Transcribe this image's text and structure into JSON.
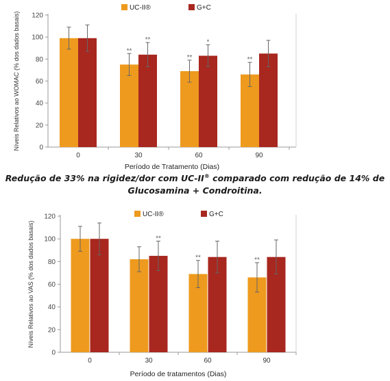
{
  "chart_data": [
    {
      "type": "bar",
      "title": "",
      "xlabel": "Período de Tratamento (Dias)",
      "ylabel": "Níveis Relativos ao WOMAC (% dos dados basais)",
      "categories": [
        "0",
        "30",
        "60",
        "90"
      ],
      "ylim": [
        0,
        120
      ],
      "yticks": [
        0,
        20,
        40,
        60,
        80,
        100,
        120
      ],
      "legend_position": "top",
      "series": [
        {
          "name": "UC-II®",
          "color": "#EE9A1E",
          "values": [
            99,
            75,
            69,
            66
          ],
          "errors": [
            10,
            10,
            10,
            11
          ],
          "annotations": [
            "",
            "**",
            "**",
            "**"
          ]
        },
        {
          "name": "G+C",
          "color": "#A8271F",
          "values": [
            99,
            84,
            83,
            85
          ],
          "errors": [
            12,
            11,
            10,
            12
          ],
          "annotations": [
            "",
            "**",
            "*",
            ""
          ]
        }
      ]
    },
    {
      "type": "bar",
      "title": "",
      "xlabel": "Período de tratamentos (Dias)",
      "ylabel": "Níveis Relativos ao VAS (% dos dados basais)",
      "categories": [
        "0",
        "30",
        "60",
        "90"
      ],
      "ylim": [
        0,
        120
      ],
      "yticks": [
        0,
        20,
        40,
        60,
        80,
        100,
        120
      ],
      "legend_position": "top",
      "series": [
        {
          "name": "UC-II®",
          "color": "#EE9A1E",
          "values": [
            100,
            82,
            69,
            66
          ],
          "errors": [
            11,
            11,
            12,
            13
          ],
          "annotations": [
            "",
            "",
            "**",
            "**"
          ]
        },
        {
          "name": "G+C",
          "color": "#A8271F",
          "values": [
            100,
            85,
            84,
            84
          ],
          "errors": [
            14,
            13,
            14,
            15
          ],
          "annotations": [
            "",
            "**",
            "",
            ""
          ]
        }
      ]
    }
  ],
  "caption": {
    "line1_part1": "Redução de 33% na rigidez/dor com UC-II",
    "line1_sup": "®",
    "line1_part2": " comparado com redução de 14% de",
    "line2": "Glucosamina + Condroitina."
  }
}
